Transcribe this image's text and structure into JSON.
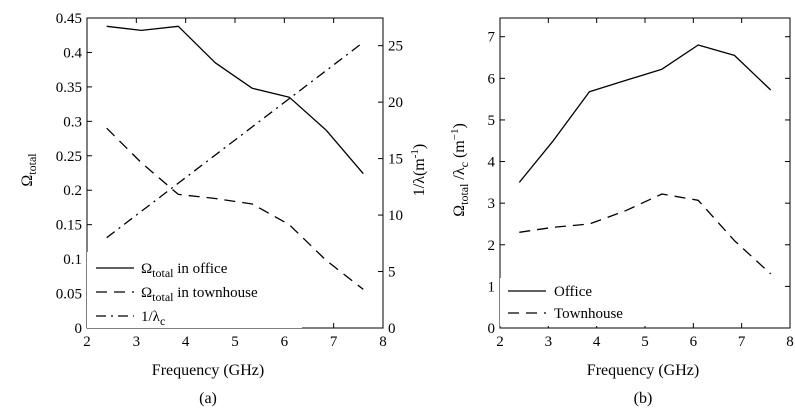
{
  "chart_data": [
    {
      "type": "line",
      "panel_label": "(a)",
      "xlabel": "Frequency (GHz)",
      "ylabel": "Ω_total",
      "y2label": "1/λ(m⁻¹)",
      "xlim": [
        2,
        8
      ],
      "ylim": [
        0,
        0.45
      ],
      "y2lim": [
        0,
        27.45
      ],
      "xticks": [
        "2",
        "3",
        "4",
        "5",
        "6",
        "7",
        "8"
      ],
      "yticks": [
        "0",
        "0.05",
        "0.1",
        "0.15",
        "0.2",
        "0.25",
        "0.3",
        "0.35",
        "0.4",
        "0.45"
      ],
      "y2ticks": [
        "0",
        "5",
        "10",
        "15",
        "20",
        "25"
      ],
      "grid": false,
      "legend_position": "bottom-left",
      "series": [
        {
          "name": "Ω_total in office",
          "axis": "left",
          "style": "solid",
          "x": [
            2.4,
            3.1,
            3.85,
            4.6,
            5.35,
            6.1,
            6.85,
            7.6
          ],
          "values": [
            0.438,
            0.432,
            0.438,
            0.385,
            0.348,
            0.335,
            0.287,
            0.224
          ]
        },
        {
          "name": "Ω_total in townhouse",
          "axis": "left",
          "style": "dashed",
          "x": [
            2.4,
            3.1,
            3.85,
            4.6,
            5.35,
            6.1,
            6.85,
            7.6
          ],
          "values": [
            0.29,
            0.24,
            0.194,
            0.188,
            0.18,
            0.15,
            0.098,
            0.056
          ]
        },
        {
          "name": "1/λ_c",
          "axis": "right",
          "style": "dashdot",
          "x": [
            2.4,
            7.6
          ],
          "values": [
            8.0,
            25.3
          ]
        }
      ]
    },
    {
      "type": "line",
      "panel_label": "(b)",
      "xlabel": "Frequency (GHz)",
      "ylabel": "Ω_total /λ_c (m⁻¹)",
      "xlim": [
        2,
        8
      ],
      "ylim": [
        0,
        7.45
      ],
      "xticks": [
        "2",
        "3",
        "4",
        "5",
        "6",
        "7",
        "8"
      ],
      "yticks": [
        "0",
        "1",
        "2",
        "3",
        "4",
        "5",
        "6",
        "7"
      ],
      "grid": false,
      "legend_position": "bottom-left",
      "series": [
        {
          "name": "Office",
          "style": "solid",
          "x": [
            2.4,
            3.1,
            3.85,
            4.6,
            5.35,
            6.1,
            6.85,
            7.6
          ],
          "values": [
            3.5,
            4.5,
            5.68,
            5.95,
            6.22,
            6.8,
            6.55,
            5.72
          ]
        },
        {
          "name": "Townhouse",
          "style": "dashed",
          "x": [
            2.4,
            3.1,
            3.85,
            4.6,
            5.35,
            6.1,
            6.85,
            7.6
          ],
          "values": [
            2.3,
            2.42,
            2.5,
            2.82,
            3.22,
            3.07,
            2.1,
            1.3
          ]
        }
      ]
    }
  ]
}
